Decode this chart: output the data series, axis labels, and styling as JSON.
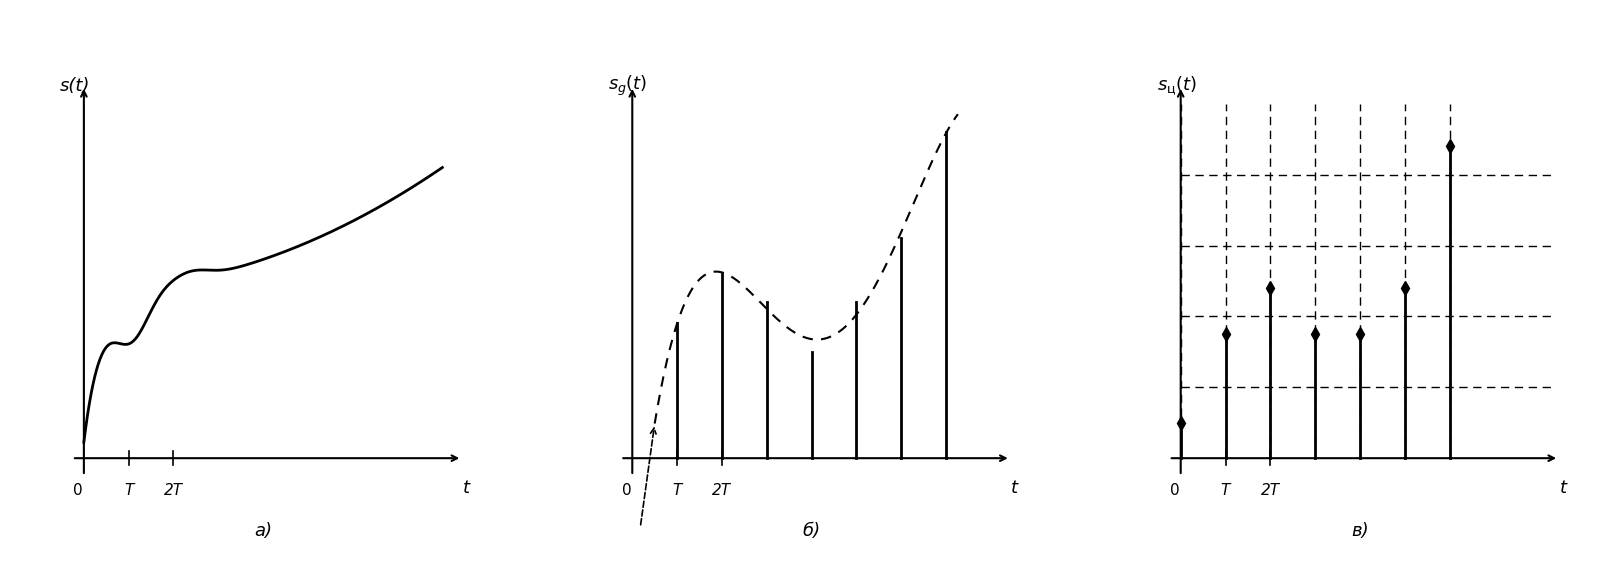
{
  "fig_width": 15.99,
  "fig_height": 5.69,
  "bg_color": "#ffffff",
  "panel_a": {
    "label": "a)",
    "ylabel": "s(t)",
    "xlabel": "t",
    "curve_color": "#000000",
    "linewidth": 2.0
  },
  "panel_b": {
    "label": "б)",
    "ylabel": "s_g(t)",
    "xlabel": "t",
    "stem_color": "#000000",
    "dashed_color": "#000000",
    "linewidth": 2.0,
    "sample_times": [
      1,
      2,
      3,
      4,
      5,
      6,
      7
    ],
    "sample_values": [
      0.38,
      0.52,
      0.44,
      0.3,
      0.44,
      0.62,
      0.92
    ]
  },
  "panel_c": {
    "label": "в)",
    "ylabel": "s_ц(t)",
    "xlabel": "t",
    "stem_color": "#000000",
    "grid_color": "#000000",
    "linewidth": 2.0,
    "sample_times": [
      0,
      1,
      2,
      3,
      4,
      5,
      6
    ],
    "sample_values_raw": [
      0.08,
      0.38,
      0.52,
      0.44,
      0.3,
      0.44,
      0.92
    ],
    "quantized_values": [
      0.1,
      0.4,
      0.5,
      0.4,
      0.3,
      0.4,
      0.9
    ],
    "quant_levels": [
      0.1,
      0.2,
      0.3,
      0.4,
      0.5,
      0.6,
      0.7,
      0.8,
      0.9,
      1.0
    ],
    "num_quant_lines": 4
  }
}
